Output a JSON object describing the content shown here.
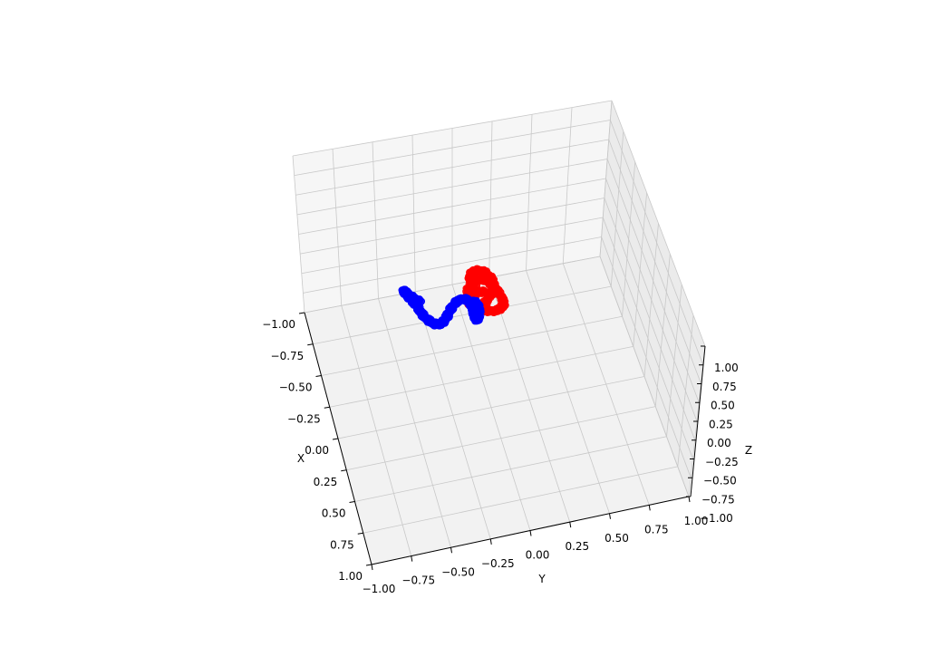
{
  "chart_data": {
    "type": "scatter",
    "projection": "3d",
    "grid": true,
    "xlabel": "X",
    "ylabel": "Y",
    "zlabel": "Z",
    "xlim": [
      -1,
      1
    ],
    "ylim": [
      -1,
      1
    ],
    "zlim": [
      -1,
      1
    ],
    "x_ticks": [
      "−1.00",
      "−0.75",
      "−0.50",
      "−0.25",
      "0.00",
      "0.25",
      "0.50",
      "0.75",
      "1.00"
    ],
    "y_ticks": [
      "−1.00",
      "−0.75",
      "−0.50",
      "−0.25",
      "0.00",
      "0.25",
      "0.50",
      "0.75",
      "1.00"
    ],
    "z_ticks": [
      "1.00",
      "0.75",
      "0.50",
      "0.25",
      "0.00",
      "−0.25",
      "−0.50",
      "−0.75",
      "−1.00"
    ],
    "series": [
      {
        "color": "#ff0000",
        "x": [
          -0.34,
          -0.4,
          -0.43,
          -0.4,
          -0.34,
          -0.27,
          -0.22,
          -0.2,
          -0.23,
          -0.29,
          -0.34,
          -0.37,
          -0.35,
          -0.28,
          -0.2,
          -0.15,
          -0.13,
          -0.15,
          -0.2,
          -0.26,
          -0.3,
          -0.3
        ],
        "y": [
          0.0,
          -0.02,
          0.03,
          0.09,
          0.12,
          0.08,
          0.02,
          -0.04,
          -0.07,
          -0.06,
          -0.02,
          0.04,
          0.1,
          0.14,
          0.15,
          0.11,
          0.05,
          -0.01,
          -0.04,
          -0.03,
          0.01,
          0.05
        ],
        "z": [
          0.05,
          0.08,
          0.1,
          0.09,
          0.05,
          0.02,
          0.0,
          0.02,
          0.06,
          0.09,
          0.1,
          0.08,
          0.04,
          0.01,
          0.0,
          0.02,
          0.05,
          0.08,
          0.09,
          0.07,
          0.04,
          0.02
        ]
      },
      {
        "color": "#0000ff",
        "x": [
          -0.28,
          -0.34,
          -0.4,
          -0.41,
          -0.36,
          -0.28,
          -0.2,
          -0.14,
          -0.12,
          -0.16,
          -0.22,
          -0.26,
          -0.24,
          -0.18,
          -0.12,
          -0.1,
          -0.13,
          -0.18,
          -0.22
        ],
        "y": [
          -0.38,
          -0.42,
          -0.45,
          -0.45,
          -0.43,
          -0.4,
          -0.38,
          -0.34,
          -0.29,
          -0.24,
          -0.19,
          -0.13,
          -0.08,
          -0.06,
          -0.06,
          -0.05,
          -0.03,
          -0.02,
          -0.04
        ],
        "z": [
          0.1,
          0.08,
          0.06,
          0.04,
          0.04,
          0.05,
          0.06,
          0.05,
          0.03,
          0.02,
          0.03,
          0.05,
          0.07,
          0.06,
          0.04,
          0.03,
          0.04,
          0.06,
          0.07
        ]
      }
    ]
  }
}
